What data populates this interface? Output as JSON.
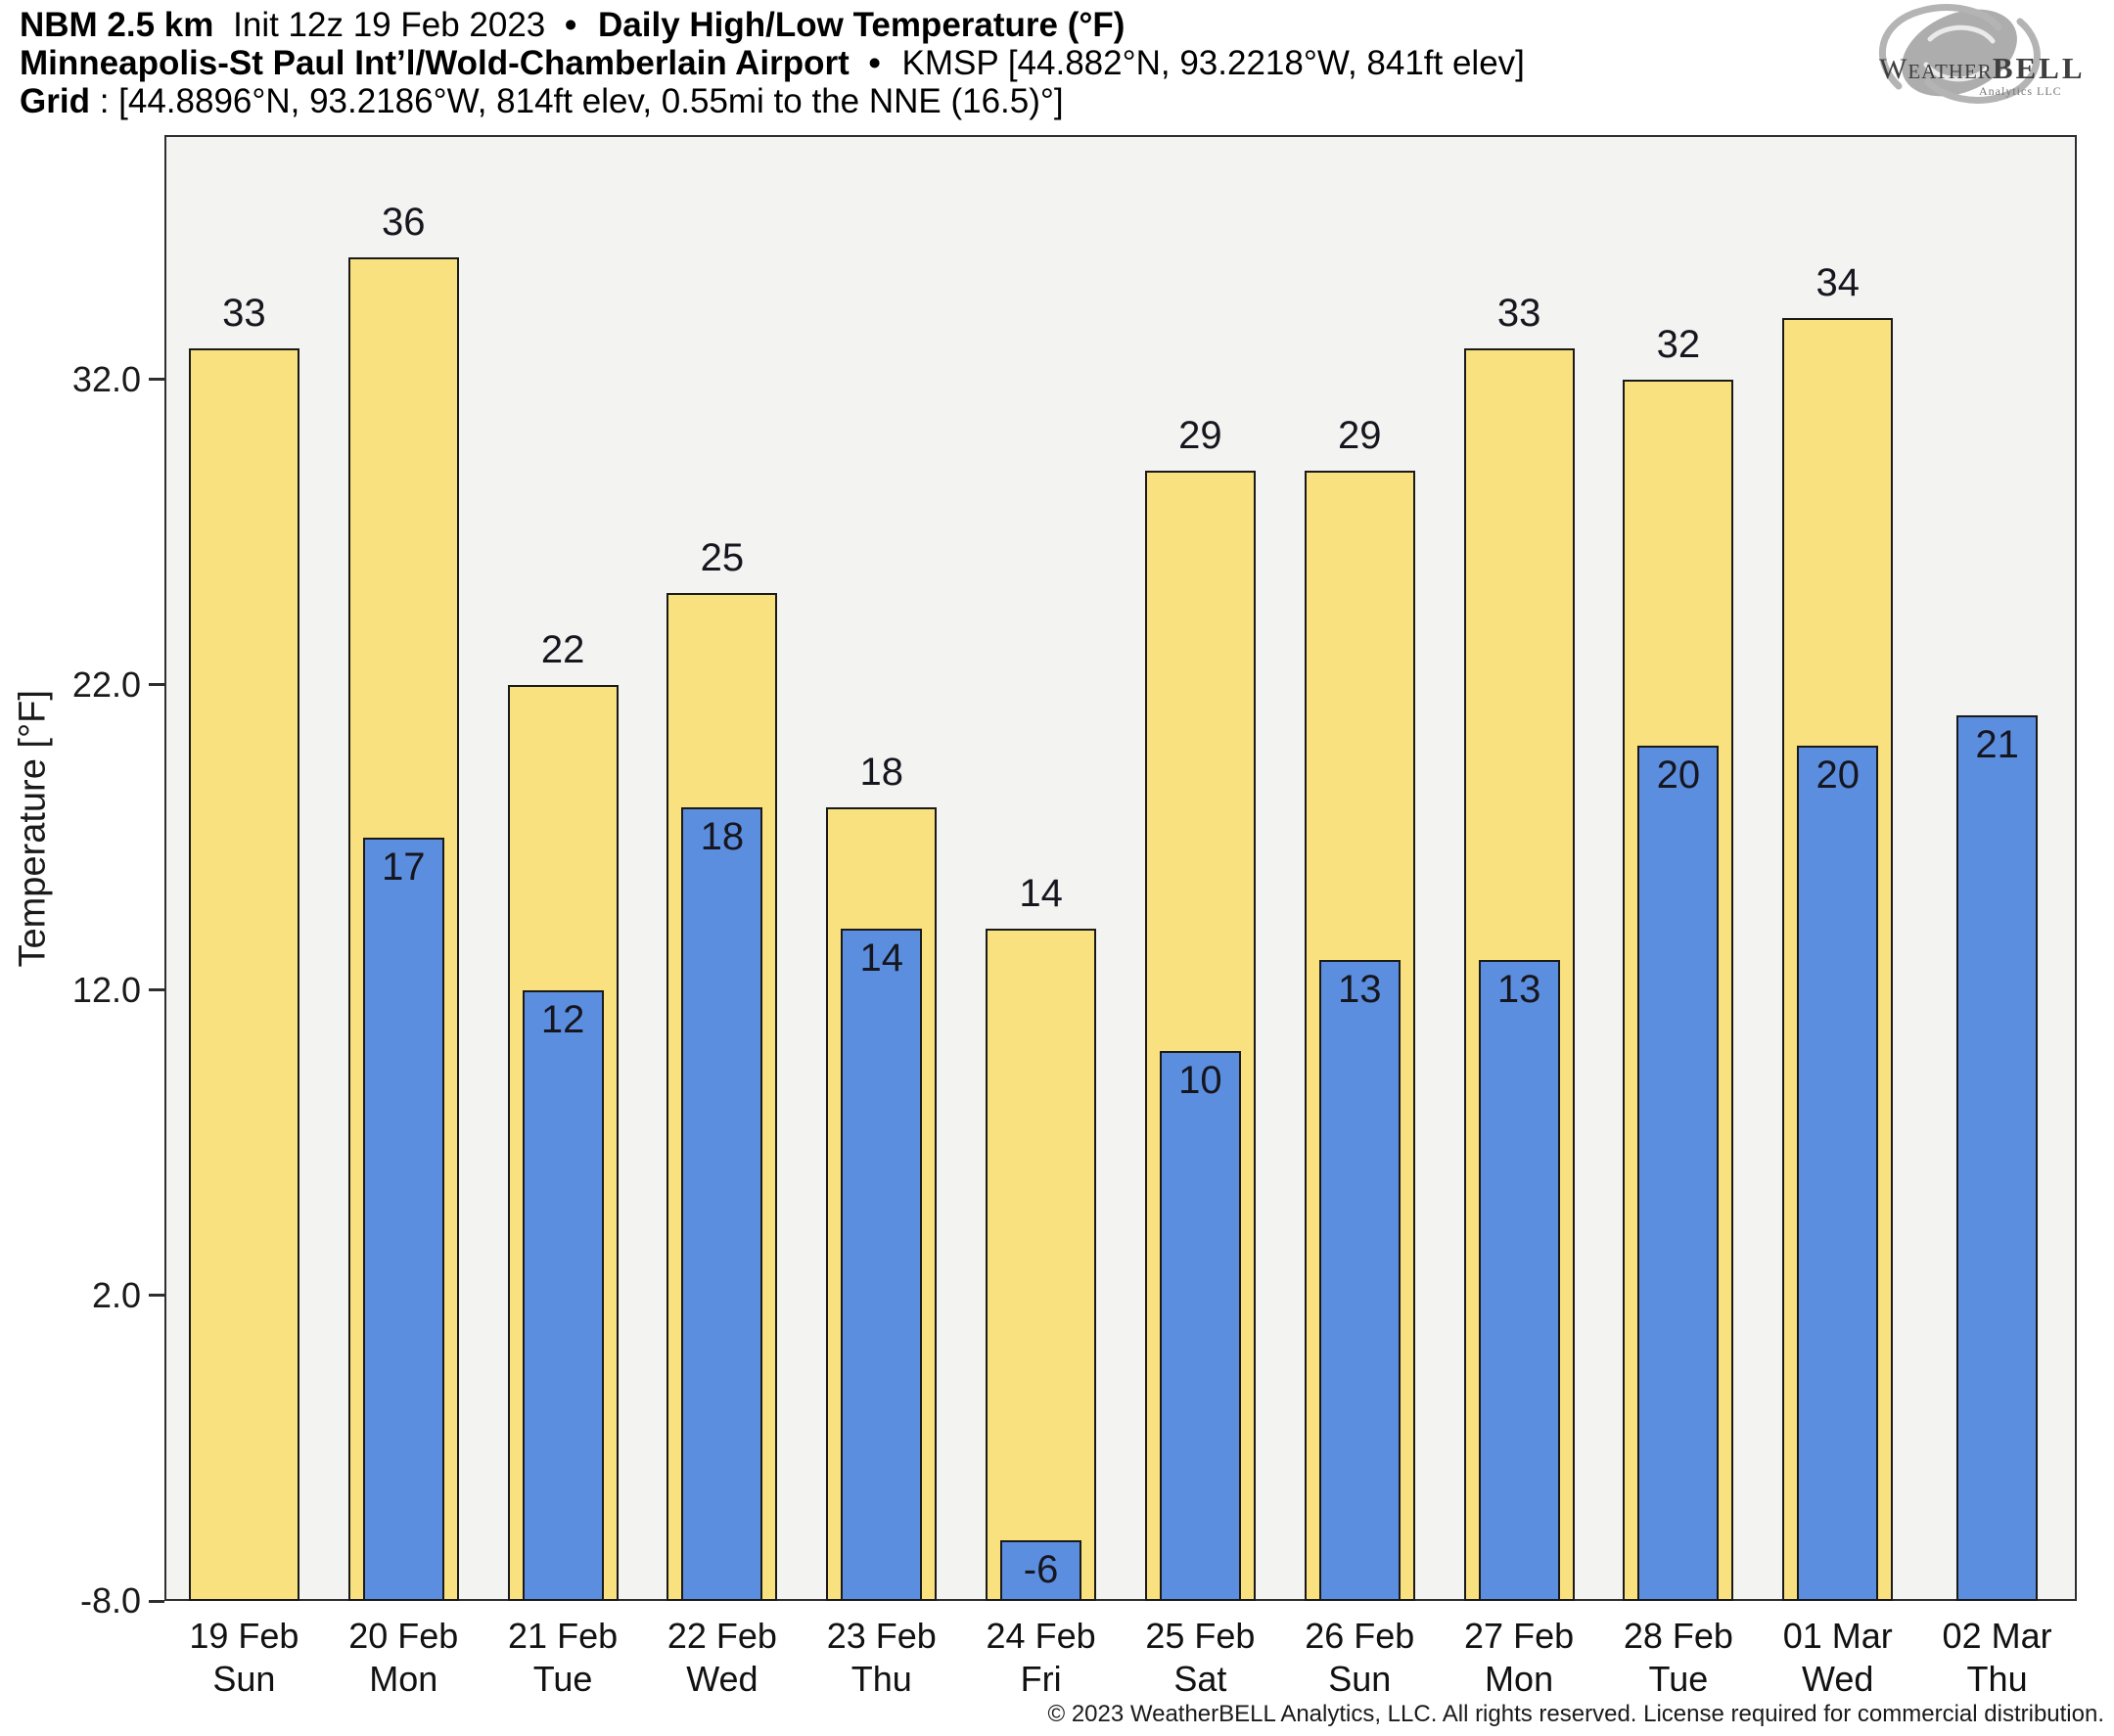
{
  "header": {
    "model": "NBM 2.5 km",
    "init": "Init 12z 19 Feb 2023",
    "dot1": "•",
    "product": "Daily High/Low Temperature (°F)",
    "station": "Minneapolis-St Paul Int’l/Wold-Chamberlain Airport",
    "dot2": "•",
    "station_info": "KMSP [44.882°N, 93.2218°W, 841ft elev]",
    "grid_label": "Grid",
    "grid_info": ": [44.8896°N, 93.2186°W, 814ft elev, 0.55mi to the NNE (16.5)°]"
  },
  "logo": {
    "word1": "Weather",
    "word2": "BELL",
    "sub": "Analytics LLC"
  },
  "footer": {
    "copyright": "© 2023 WeatherBELL Analytics, LLC. All rights reserved. License required for commercial distribution."
  },
  "chart_data": {
    "type": "bar",
    "title": "Daily High/Low Temperature (°F)",
    "xlabel": "",
    "ylabel": "Temperature [°F]",
    "ylim": [
      -8,
      40
    ],
    "yticks": [
      -8.0,
      2.0,
      12.0,
      22.0,
      32.0
    ],
    "ytick_labels": [
      "-8.0",
      "2.0",
      "12.0",
      "22.0",
      "32.0"
    ],
    "grid": false,
    "legend_position": "none",
    "plot_background": "#f3f3f2",
    "bar_edge_color": "#1a1a1a",
    "categories": [
      {
        "date": "19 Feb",
        "day": "Sun"
      },
      {
        "date": "20 Feb",
        "day": "Mon"
      },
      {
        "date": "21 Feb",
        "day": "Tue"
      },
      {
        "date": "22 Feb",
        "day": "Wed"
      },
      {
        "date": "23 Feb",
        "day": "Thu"
      },
      {
        "date": "24 Feb",
        "day": "Fri"
      },
      {
        "date": "25 Feb",
        "day": "Sat"
      },
      {
        "date": "26 Feb",
        "day": "Sun"
      },
      {
        "date": "27 Feb",
        "day": "Mon"
      },
      {
        "date": "28 Feb",
        "day": "Tue"
      },
      {
        "date": "01 Mar",
        "day": "Wed"
      },
      {
        "date": "02 Mar",
        "day": "Thu"
      }
    ],
    "series": [
      {
        "name": "Daily High",
        "color": "#f9e180",
        "values": [
          33,
          36,
          22,
          25,
          18,
          14,
          29,
          29,
          33,
          32,
          34,
          null
        ]
      },
      {
        "name": "Daily Low",
        "color": "#5c8ee0",
        "values": [
          null,
          17,
          12,
          18,
          14,
          -6,
          10,
          13,
          13,
          20,
          20,
          21
        ]
      }
    ]
  }
}
